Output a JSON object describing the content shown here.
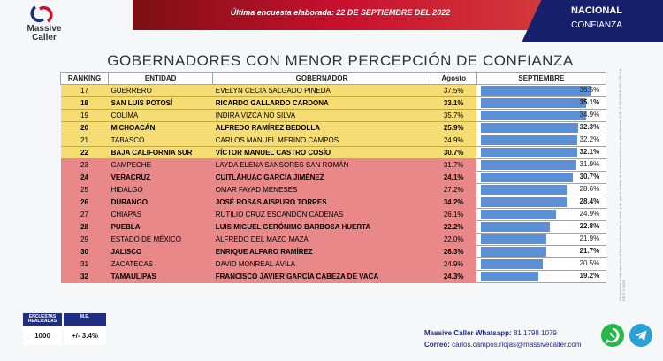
{
  "header": {
    "brand_line1": "Massive",
    "brand_line2": "Caller",
    "survey_date": "Última encuesta elaborada:  22 DE SEPTIEMBRE DEL 2022",
    "scope": "NACIONAL",
    "topic": "CONFIANZA"
  },
  "title": "GOBERNADORES CON MENOR PERCEPCIÓN DE CONFIANZA",
  "side_note": "Se autoriza la reproducción al hacer referencia a la fuente y de que el sentido de la información no ha sido alterado. D.R. ©MASSIVE CALLER S.A. DE C.V. 2022",
  "columns": [
    "RANKING",
    "ENTIDAD",
    "GOBERNADOR",
    "Agosto",
    "SEPTIEMBRE"
  ],
  "rows": [
    {
      "rank": "17",
      "entity": "GUERRERO",
      "governor": "EVELYN CECIA SALGADO PINEDA",
      "aug": "37.5%",
      "sep": "36.5%",
      "sep_value": 36.5,
      "color": "yellow",
      "bold": false
    },
    {
      "rank": "18",
      "entity": "SAN LUIS POTOSÍ",
      "governor": "RICARDO GALLARDO CARDONA",
      "aug": "33.1%",
      "sep": "35.1%",
      "sep_value": 35.1,
      "color": "yellow",
      "bold": true
    },
    {
      "rank": "19",
      "entity": "COLIMA",
      "governor": "INDIRA VIZCAÍNO SILVA",
      "aug": "35.7%",
      "sep": "34.9%",
      "sep_value": 34.9,
      "color": "yellow",
      "bold": false
    },
    {
      "rank": "20",
      "entity": "MICHOACÁN",
      "governor": "ALFREDO RAMÍREZ BEDOLLA",
      "aug": "25.9%",
      "sep": "32.3%",
      "sep_value": 32.3,
      "color": "yellow",
      "bold": true
    },
    {
      "rank": "21",
      "entity": "TABASCO",
      "governor": "CARLOS MANUEL MERINO CAMPOS",
      "aug": "24.9%",
      "sep": "32.2%",
      "sep_value": 32.2,
      "color": "yellow",
      "bold": false
    },
    {
      "rank": "22",
      "entity": "BAJA CALIFORNIA SUR",
      "governor": "VÍCTOR MANUEL CASTRO COSÍO",
      "aug": "30.7%",
      "sep": "32.1%",
      "sep_value": 32.1,
      "color": "yellow",
      "bold": true
    },
    {
      "rank": "23",
      "entity": "CAMPECHE",
      "governor": "LAYDA ELENA SANSORES SAN ROMÁN",
      "aug": "31.7%",
      "sep": "31.9%",
      "sep_value": 31.9,
      "color": "red",
      "bold": false
    },
    {
      "rank": "24",
      "entity": "VERACRUZ",
      "governor": "CUITLÁHUAC GARCÍA JIMÉNEZ",
      "aug": "24.1%",
      "sep": "30.7%",
      "sep_value": 30.7,
      "color": "red",
      "bold": true
    },
    {
      "rank": "25",
      "entity": "HIDALGO",
      "governor": "OMAR FAYAD MENESES",
      "aug": "27.2%",
      "sep": "28.6%",
      "sep_value": 28.6,
      "color": "red",
      "bold": false
    },
    {
      "rank": "26",
      "entity": "DURANGO",
      "governor": "JOSÉ ROSAS AISPURO TORRES",
      "aug": "34.2%",
      "sep": "28.4%",
      "sep_value": 28.4,
      "color": "red",
      "bold": true
    },
    {
      "rank": "27",
      "entity": "CHIAPAS",
      "governor": "RUTILIO CRUZ ESCANDÓN CADENAS",
      "aug": "26.1%",
      "sep": "24.9%",
      "sep_value": 24.9,
      "color": "red",
      "bold": false
    },
    {
      "rank": "28",
      "entity": "PUEBLA",
      "governor": "LUIS MIGUEL GERÓNIMO BARBOSA HUERTA",
      "aug": "22.2%",
      "sep": "22.8%",
      "sep_value": 22.8,
      "color": "red",
      "bold": true
    },
    {
      "rank": "29",
      "entity": "ESTADO DE MÉXICO",
      "governor": "ALFREDO DEL MAZO MAZA",
      "aug": "22.0%",
      "sep": "21.9%",
      "sep_value": 21.9,
      "color": "red",
      "bold": false
    },
    {
      "rank": "30",
      "entity": "JALISCO",
      "governor": "ENRIQUE ALFARO RAMÍREZ",
      "aug": "26.3%",
      "sep": "21.7%",
      "sep_value": 21.7,
      "color": "red",
      "bold": true
    },
    {
      "rank": "31",
      "entity": "ZACATECAS",
      "governor": "DAVID MONREAL ÁVILA",
      "aug": "24.9%",
      "sep": "20.5%",
      "sep_value": 20.5,
      "color": "red",
      "bold": false
    },
    {
      "rank": "32",
      "entity": "TAMAULIPAS",
      "governor": "FRANCISCO JAVIER GARCÍA CABEZA DE VACA",
      "aug": "24.3%",
      "sep": "19.2%",
      "sep_value": 19.2,
      "color": "red",
      "bold": true
    }
  ],
  "stats": {
    "label_surveys": "ENCUESTAS REALIZADAS",
    "label_me": "M.E.",
    "surveys": "1000",
    "me": "+/- 3.4%"
  },
  "contact": {
    "whatsapp_label": "Massive Caller Whatsapp:",
    "whatsapp_number": "81 1798 1079",
    "email_label": "Correo:",
    "email": "carlos.campos.riojas@massivecaller.com"
  },
  "colors": {
    "yellow_row": "#f5dc73",
    "red_row": "#e88889",
    "bar": "#5b8fd6",
    "navy": "#1f2d84",
    "banner_red": "#c8102e"
  },
  "icons": [
    "whatsapp-icon",
    "telegram-icon"
  ]
}
